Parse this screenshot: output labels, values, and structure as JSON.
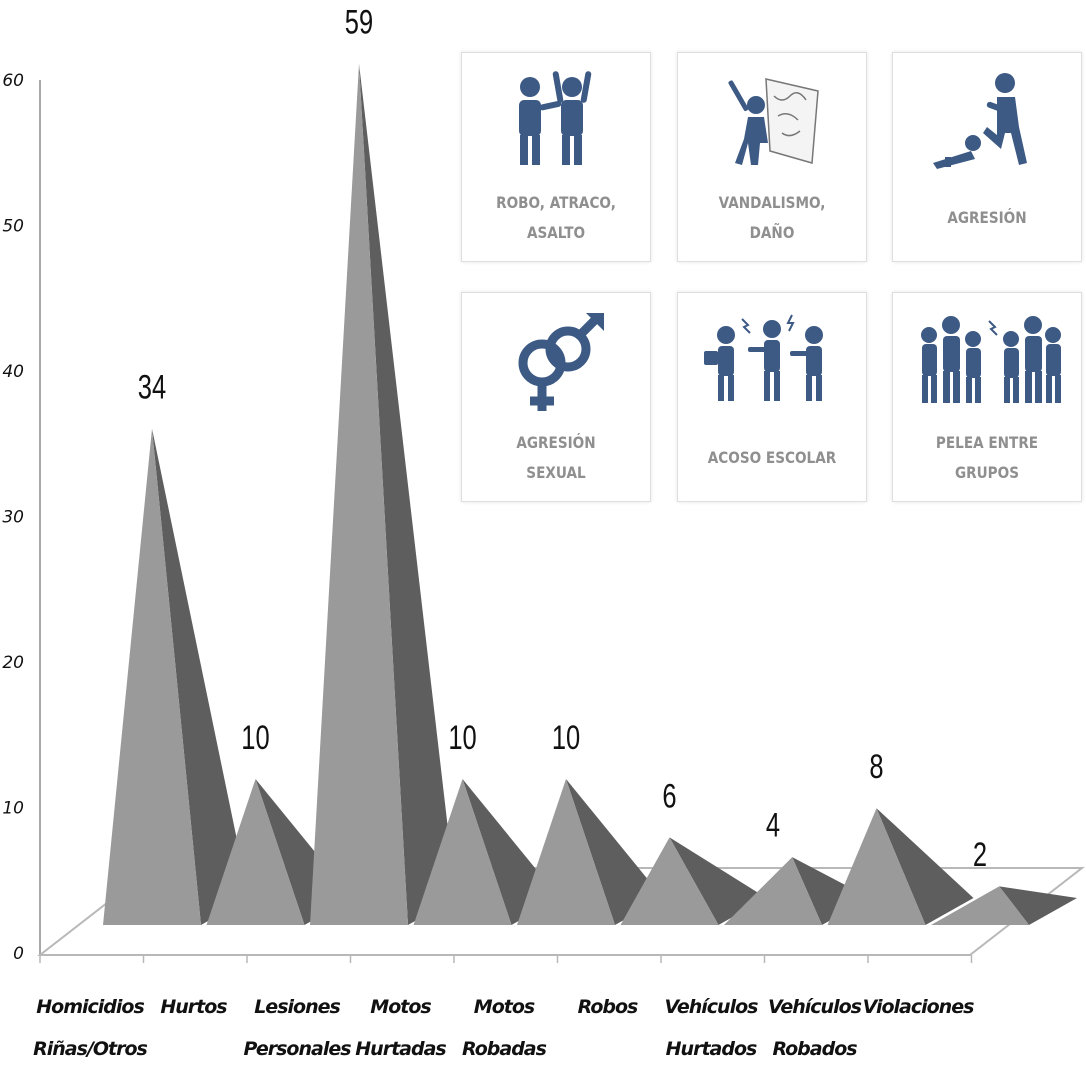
{
  "chart_data": {
    "type": "bar",
    "bar_shape": "pyramid-3d",
    "categories": [
      "Homicidios\nRiñas/Otros",
      "Hurtos",
      "Lesiones\nPersonales",
      "Motos\nHurtadas",
      "Motos\nRobadas",
      "Robos",
      "Vehículos\nHurtados",
      "Vehículos\nRobados",
      "Violaciones"
    ],
    "values": [
      34,
      10,
      59,
      10,
      10,
      6,
      4,
      8,
      2
    ],
    "data_labels": [
      "34",
      "10",
      "59",
      "10",
      "10",
      "6",
      "4",
      "8",
      "2"
    ],
    "yticks": [
      "0",
      "10",
      "20",
      "30",
      "40",
      "50",
      "60"
    ],
    "ylim": [
      0,
      60
    ],
    "title": "",
    "xlabel": "",
    "ylabel": "",
    "grid": false,
    "legend": "none"
  },
  "cards": [
    {
      "icon": "robbery-icon",
      "label": "ROBO, ATRACO,\nASALTO"
    },
    {
      "icon": "vandalism-icon",
      "label": "VANDALISMO,\nDAÑO"
    },
    {
      "icon": "aggression-icon",
      "label": "AGRESIÓN"
    },
    {
      "icon": "gender-symbol-icon",
      "label": "AGRESIÓN\nSEXUAL"
    },
    {
      "icon": "bullying-icon",
      "label": "ACOSO ESCOLAR"
    },
    {
      "icon": "group-fight-icon",
      "label": "PELEA ENTRE\nGRUPOS"
    }
  ],
  "colors": {
    "pyramid_light": "#9a9a9a",
    "pyramid_dark": "#5e5e5e",
    "icon_blue": "#3d5a85",
    "card_text": "#8f8f8f"
  }
}
